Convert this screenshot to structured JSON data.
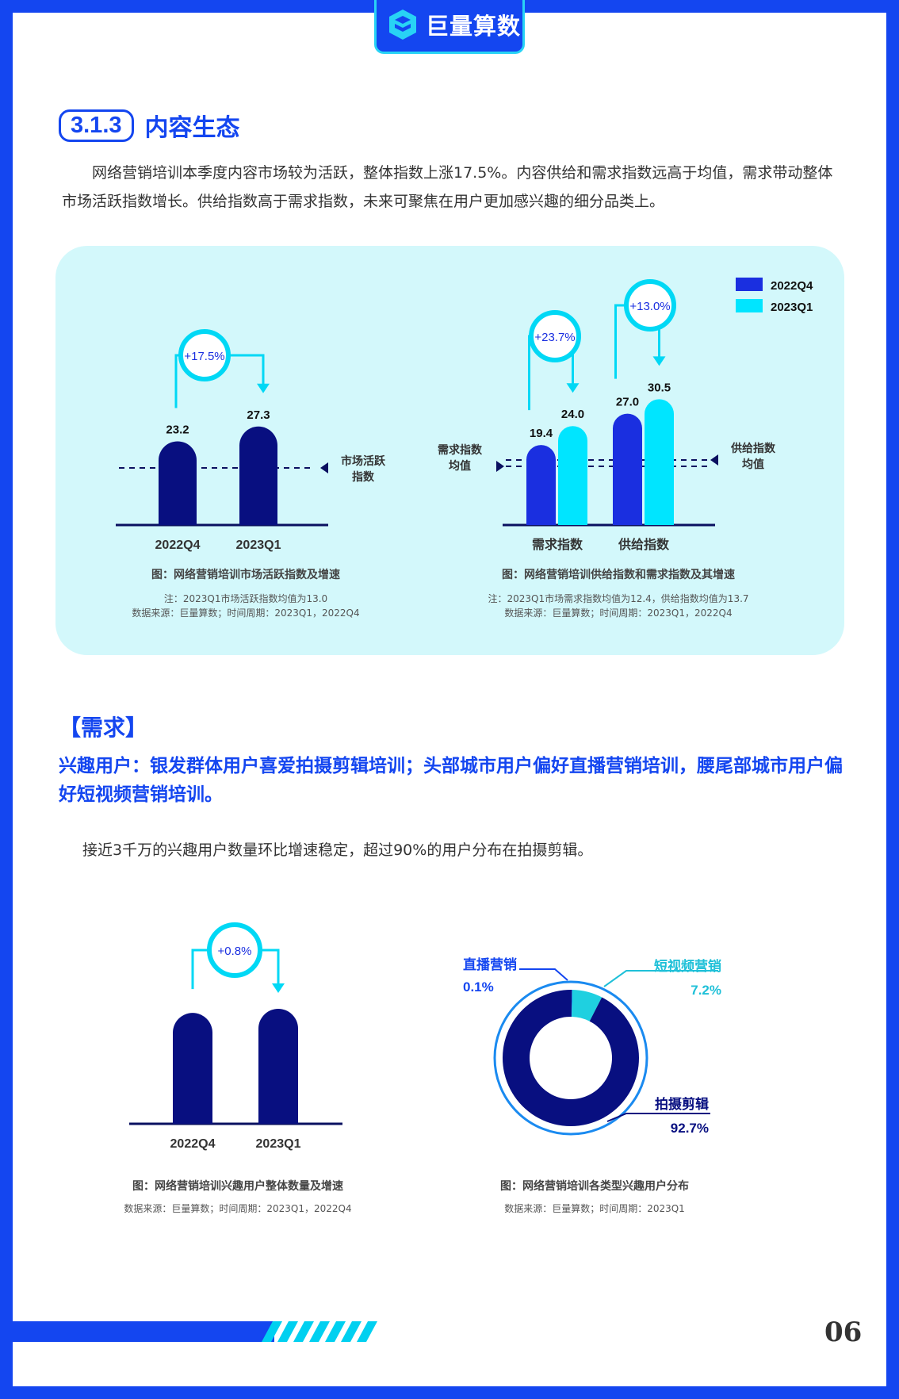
{
  "brand": {
    "name": "巨量算数"
  },
  "section": {
    "number": "3.1.3",
    "title": "内容生态"
  },
  "intro": "网络营销培训本季度内容市场较为活跃，整体指数上涨17.5%。内容供给和需求指数远高于均值，需求带动整体市场活跃指数增长。供给指数高于需求指数，未来可聚焦在用户更加感兴趣的细分品类上。",
  "colors": {
    "accent": "#1446f0",
    "cyan": "#00e5ff",
    "navy": "#080f80",
    "blue": "#1a2fe0"
  },
  "legend": {
    "q4": "2022Q4",
    "q1": "2023Q1"
  },
  "chart_data": [
    {
      "type": "bar",
      "categories": [
        "2022Q4",
        "2023Q1"
      ],
      "values": [
        23.2,
        27.3
      ],
      "growth": "+17.5%",
      "avg_label": "市场活跃指数",
      "avg_value": 13.0,
      "title": "图：网络营销培训市场活跃指数及增速",
      "note": "注：2023Q1市场活跃指数均值为13.0",
      "source": "数据来源：巨量算数；时间周期：2023Q1，2022Q4"
    },
    {
      "type": "bar",
      "categories": [
        "需求指数",
        "供给指数"
      ],
      "series": [
        {
          "name": "2022Q4",
          "values": [
            19.4,
            27.0
          ]
        },
        {
          "name": "2023Q1",
          "values": [
            24.0,
            30.5
          ]
        }
      ],
      "growth": [
        "+23.7%",
        "+13.0%"
      ],
      "avg_labels": [
        "需求指数均值",
        "供给指数均值"
      ],
      "title": "图：网络营销培训供给指数和需求指数及其增速",
      "note": "注：2023Q1市场需求指数均值为12.4，供给指数均值为13.7",
      "source": "数据来源：巨量算数；时间周期：2023Q1，2022Q4"
    },
    {
      "type": "bar",
      "categories": [
        "2022Q4",
        "2023Q1"
      ],
      "values": [
        1.0,
        1.008
      ],
      "growth": "+0.8%",
      "title": "图：网络营销培训兴趣用户整体数量及增速",
      "source": "数据来源：巨量算数；时间周期：2023Q1，2022Q4"
    },
    {
      "type": "pie",
      "slices": [
        {
          "label": "拍摄剪辑",
          "value": 92.7,
          "display": "92.7%"
        },
        {
          "label": "短视频营销",
          "value": 7.2,
          "display": "7.2%"
        },
        {
          "label": "直播营销",
          "value": 0.1,
          "display": "0.1%"
        }
      ],
      "title": "图：网络营销培训各类型兴趣用户分布",
      "source": "数据来源：巨量算数；时间周期：2023Q1"
    }
  ],
  "demand": {
    "heading": "【需求】",
    "subheading": "兴趣用户：银发群体用户喜爱拍摄剪辑培训；头部城市用户偏好直播营销培训，腰尾部城市用户偏好短视频营销培训。",
    "para": "接近3千万的兴趣用户数量环比增速稳定，超过90%的用户分布在拍摄剪辑。"
  },
  "page_number": "06"
}
